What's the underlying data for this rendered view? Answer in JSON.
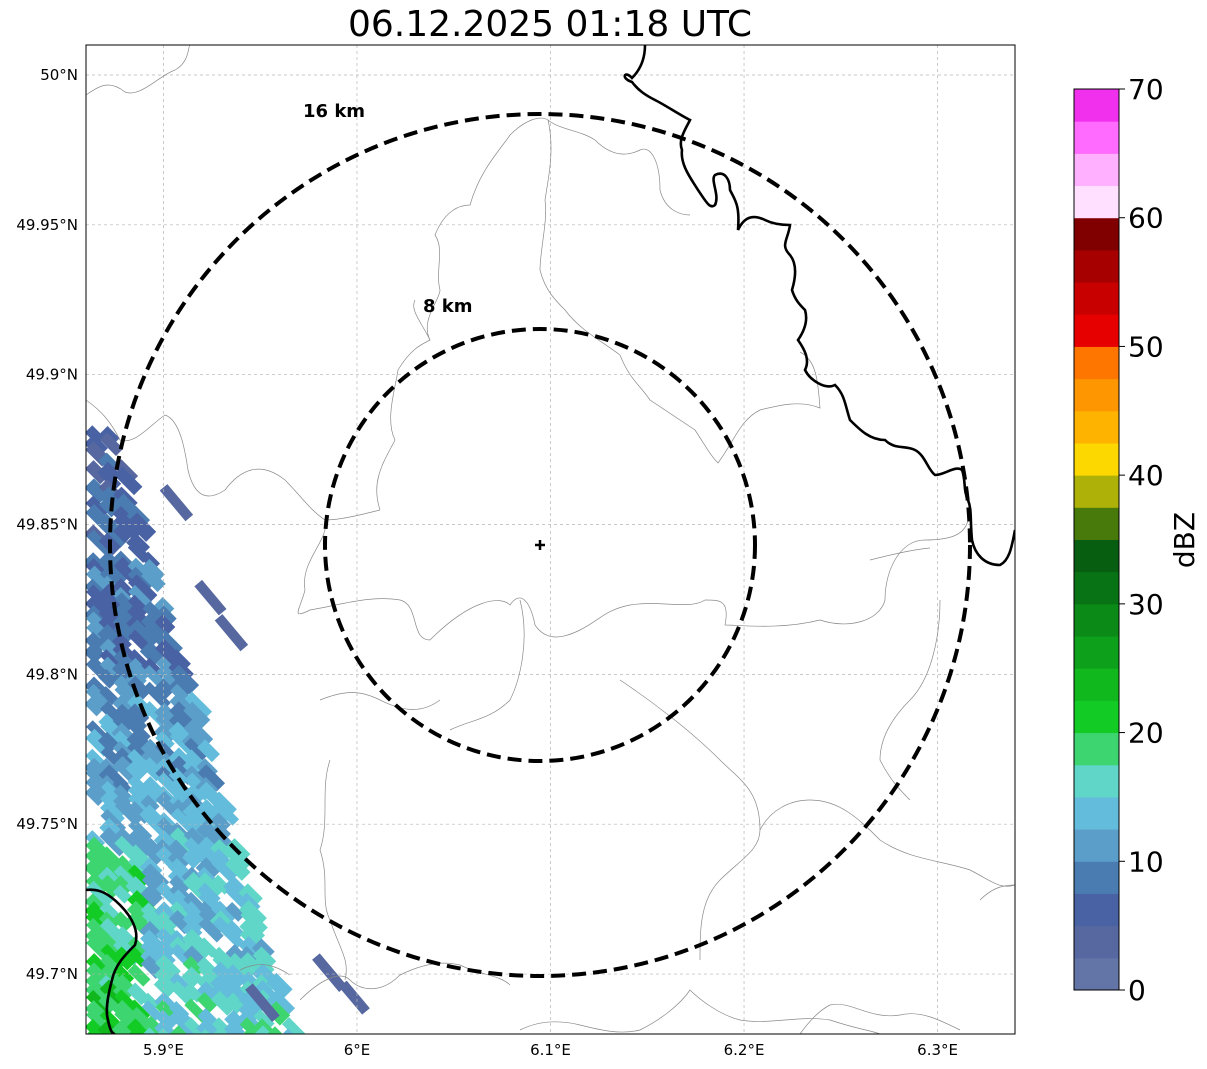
{
  "title": "06.12.2025 01:18 UTC",
  "map": {
    "lon_range": [
      5.86,
      6.34
    ],
    "lat_range": [
      49.68,
      50.01
    ],
    "lon_ticks": [
      {
        "value": 5.9,
        "label": "5.9°E"
      },
      {
        "value": 6.0,
        "label": "6°E"
      },
      {
        "value": 6.1,
        "label": "6.1°E"
      },
      {
        "value": 6.2,
        "label": "6.2°E"
      },
      {
        "value": 6.3,
        "label": "6.3°E"
      }
    ],
    "lat_ticks": [
      {
        "value": 50.0,
        "label": "50°N"
      },
      {
        "value": 49.95,
        "label": "49.95°N"
      },
      {
        "value": 49.9,
        "label": "49.9°N"
      },
      {
        "value": 49.85,
        "label": "49.85°N"
      },
      {
        "value": 49.8,
        "label": "49.8°N"
      },
      {
        "value": 49.75,
        "label": "49.75°N"
      },
      {
        "value": 49.7,
        "label": "49.7°N"
      }
    ],
    "radar_site": {
      "lon": 6.094,
      "lat": 49.843
    },
    "range_rings": [
      {
        "label": "8 km",
        "radius_km": 8
      },
      {
        "label": "16 km",
        "radius_km": 16
      }
    ],
    "gridlines": true
  },
  "colorbar": {
    "label": "dBZ",
    "min": 0,
    "max": 70,
    "ticks": [
      "0",
      "10",
      "20",
      "30",
      "40",
      "50",
      "60",
      "70"
    ],
    "colors": [
      "#6374a6",
      "#56689f",
      "#4862a4",
      "#4a7cb1",
      "#5b9ec9",
      "#63bcdb",
      "#5fd6c7",
      "#3dd56f",
      "#12cc25",
      "#10b81e",
      "#0da01a",
      "#0b8a18",
      "#087314",
      "#075e10",
      "#487a0b",
      "#adb108",
      "#fcd700",
      "#fdb300",
      "#fd9600",
      "#fe7600",
      "#e60000",
      "#c80000",
      "#a60000",
      "#800000",
      "#ffe0ff",
      "#ffb0ff",
      "#ff6aff",
      "#f030ec"
    ]
  },
  "reflectivity_echo": {
    "dbz_min": 2,
    "dbz_max": 22,
    "region": "south-west"
  }
}
